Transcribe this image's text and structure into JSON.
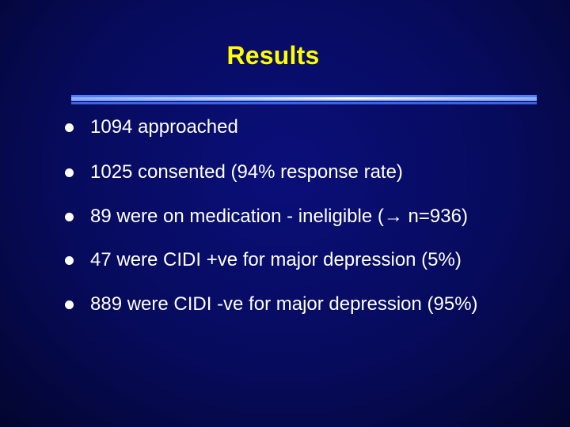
{
  "slide": {
    "title": "Results",
    "bullets": [
      {
        "text": "1094 approached"
      },
      {
        "text": "1025 consented (94% response rate)"
      },
      {
        "text": "89 were on medication - ineligible (→ n=936)"
      },
      {
        "text": "47 were CIDI +ve for major depression (5%)"
      },
      {
        "text": "889 were CIDI -ve for major depression (95%)"
      }
    ]
  },
  "colors": {
    "background": "#070b5c",
    "title": "#ffff00",
    "text": "#ffffff",
    "rule": "#4f7cff"
  }
}
